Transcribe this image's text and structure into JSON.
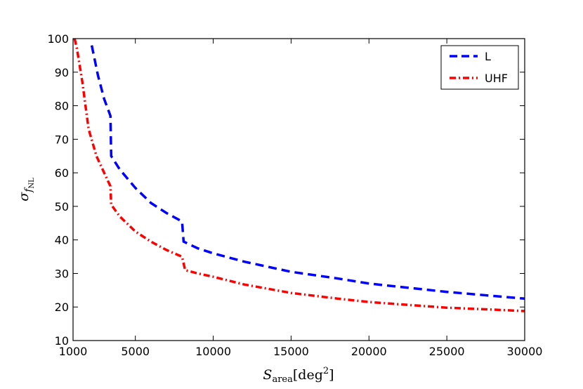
{
  "chart_data": {
    "type": "line",
    "xlabel": "S_area[deg^2]",
    "ylabel": "σ_f_NL",
    "xlim": [
      1000,
      30000
    ],
    "ylim": [
      10,
      100
    ],
    "xticks": [
      "1000",
      "5000",
      "10000",
      "15000",
      "20000",
      "25000",
      "30000"
    ],
    "yticks": [
      "10",
      "20",
      "30",
      "40",
      "50",
      "60",
      "70",
      "80",
      "90",
      "100"
    ],
    "grid": false,
    "legend_position": "top-right",
    "series": [
      {
        "name": "L",
        "color": "#0000ff",
        "style": "dashed",
        "points": [
          [
            2200,
            98
          ],
          [
            2600,
            89
          ],
          [
            3000,
            82
          ],
          [
            3400,
            77
          ],
          [
            3450,
            65
          ],
          [
            4000,
            61
          ],
          [
            5000,
            55.5
          ],
          [
            6000,
            51
          ],
          [
            7000,
            48
          ],
          [
            8000,
            45.5
          ],
          [
            8100,
            39.5
          ],
          [
            9000,
            37.5
          ],
          [
            10000,
            36
          ],
          [
            12000,
            33.5
          ],
          [
            15000,
            30.5
          ],
          [
            18000,
            28.5
          ],
          [
            20000,
            27
          ],
          [
            22000,
            26
          ],
          [
            25000,
            24.5
          ],
          [
            28000,
            23.3
          ],
          [
            30000,
            22.5
          ]
        ]
      },
      {
        "name": "UHF",
        "color": "#ff0000",
        "style": "dashdot",
        "points": [
          [
            1100,
            100
          ],
          [
            1250,
            97
          ],
          [
            1600,
            87
          ],
          [
            1800,
            80
          ],
          [
            2000,
            73
          ],
          [
            2500,
            65
          ],
          [
            3000,
            60
          ],
          [
            3400,
            56
          ],
          [
            3450,
            50.5
          ],
          [
            4000,
            47
          ],
          [
            5000,
            42.5
          ],
          [
            6000,
            39.5
          ],
          [
            7000,
            37
          ],
          [
            8000,
            35
          ],
          [
            8200,
            31
          ],
          [
            9000,
            30
          ],
          [
            10000,
            29
          ],
          [
            12000,
            26.7
          ],
          [
            15000,
            24.2
          ],
          [
            18000,
            22.5
          ],
          [
            20000,
            21.5
          ],
          [
            22000,
            20.8
          ],
          [
            25000,
            19.8
          ],
          [
            28000,
            19.2
          ],
          [
            30000,
            18.8
          ]
        ]
      }
    ]
  }
}
